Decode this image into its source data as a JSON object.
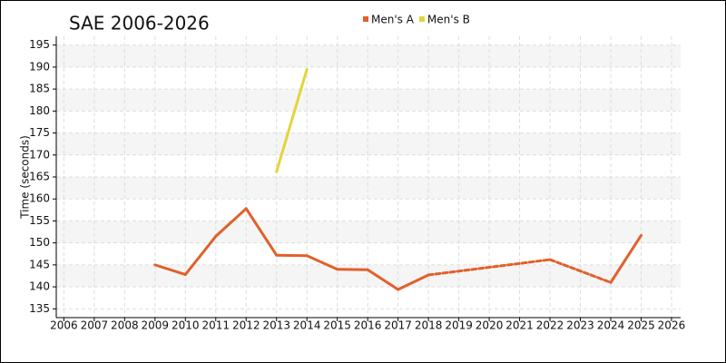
{
  "chart_data": {
    "type": "line",
    "title": "SAE 2006-2026",
    "y_label": "Time (seconds)",
    "series": [
      {
        "name": "Men's A",
        "color": "#e0612b",
        "x": [
          2009,
          2010,
          2011,
          2012,
          2013,
          2014,
          2015,
          2016,
          2017,
          2018,
          2022,
          2024,
          2025
        ],
        "values": [
          145,
          142.8,
          151.5,
          157.8,
          147.2,
          147.1,
          144,
          143.9,
          139.4,
          142.7,
          146.2,
          141,
          151.7
        ]
      },
      {
        "name": "Men's B",
        "color": "#e2d53a",
        "x": [
          2013,
          2014
        ],
        "values": [
          166.2,
          189.5
        ]
      }
    ],
    "xlim": [
      2005.75,
      2026.3
    ],
    "xticks": [
      2006,
      2007,
      2008,
      2009,
      2010,
      2011,
      2012,
      2013,
      2014,
      2015,
      2016,
      2017,
      2018,
      2019,
      2020,
      2021,
      2022,
      2023,
      2024,
      2025,
      2026
    ],
    "ylim": [
      133,
      197
    ],
    "yticks": [
      135,
      140,
      145,
      150,
      155,
      160,
      165,
      170,
      175,
      180,
      185,
      190,
      195
    ],
    "grid": true,
    "legend": "top"
  }
}
